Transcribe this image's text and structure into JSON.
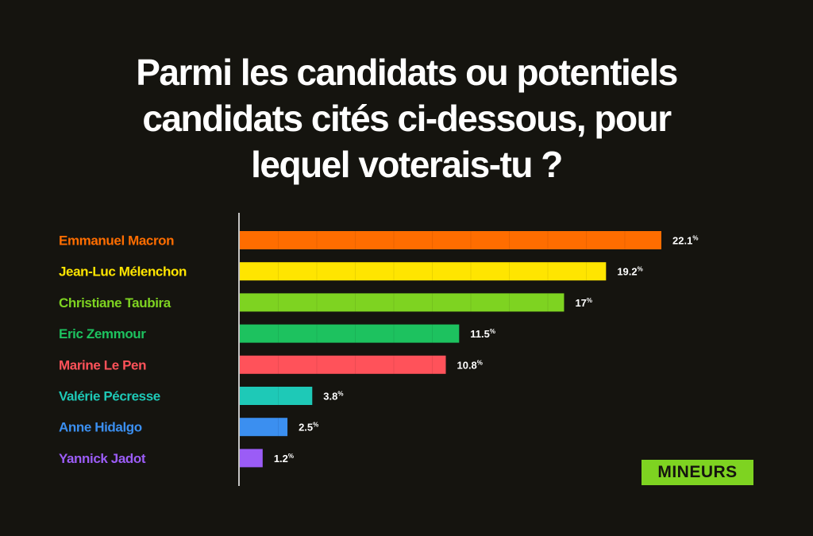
{
  "header": {
    "title_lines": [
      "Parmi les candidats ou potentiels",
      "candidats cités ci-dessous, pour",
      "lequel voterais-tu ?"
    ]
  },
  "brand": {
    "logo_text": "MINEURS",
    "color": "#7ed321"
  },
  "chart_data": {
    "type": "bar",
    "orientation": "horizontal",
    "title": "Parmi les candidats ou potentiels candidats cités ci-dessous, pour lequel voterais-tu ?",
    "unit": "%",
    "xlim": [
      0,
      22.1
    ],
    "grid": false,
    "categories": [
      "Emmanuel Macron",
      "Jean-Luc Mélenchon",
      "Christiane Taubira",
      "Eric Zemmour",
      "Marine Le Pen",
      "Valérie Pécresse",
      "Anne Hidalgo",
      "Yannick Jadot"
    ],
    "values": [
      22.1,
      19.2,
      17,
      11.5,
      10.8,
      3.8,
      2.5,
      1.2
    ],
    "value_labels": [
      "22.1",
      "19.2",
      "17",
      "11.5",
      "10.8",
      "3.8",
      "2.5",
      "1.2"
    ],
    "colors": [
      "#ff6d00",
      "#ffe500",
      "#7ed321",
      "#1dc25f",
      "#ff525a",
      "#1ec9b7",
      "#3b8ff0",
      "#9b5cf6"
    ]
  }
}
